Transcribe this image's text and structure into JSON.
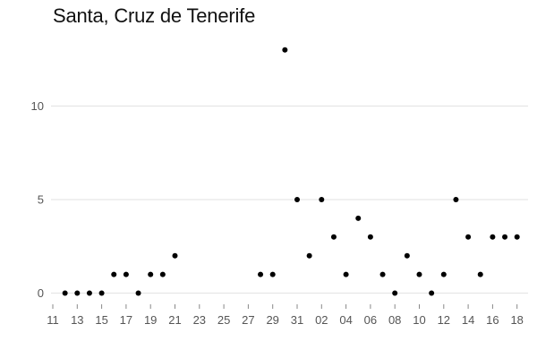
{
  "chart_data": {
    "type": "scatter",
    "title": "Santa, Cruz de Tenerife",
    "xlabel": "",
    "ylabel": "",
    "grid": "horizontal",
    "x_tick_labels": [
      "11",
      "13",
      "15",
      "17",
      "19",
      "21",
      "23",
      "25",
      "27",
      "29",
      "31",
      "02",
      "04",
      "06",
      "08",
      "10",
      "12",
      "14",
      "16",
      "18"
    ],
    "y_ticks": [
      0,
      5,
      10
    ],
    "ylim": [
      -0.6,
      14
    ],
    "series": [
      {
        "x": [
          "12",
          "13",
          "14",
          "15",
          "16",
          "17",
          "18",
          "19",
          "20",
          "21",
          "28",
          "29",
          "30",
          "31",
          "01",
          "02",
          "03",
          "04",
          "05",
          "06",
          "07",
          "08",
          "09",
          "10",
          "11",
          "12",
          "13",
          "14",
          "15",
          "16",
          "17",
          "18"
        ],
        "y": [
          0,
          0,
          0,
          0,
          1,
          1,
          0,
          1,
          1,
          2,
          1,
          1,
          13,
          5,
          2,
          5,
          3,
          1,
          4,
          3,
          1,
          0,
          2,
          1,
          0,
          1,
          5,
          3,
          1,
          3,
          3,
          3
        ]
      }
    ]
  }
}
